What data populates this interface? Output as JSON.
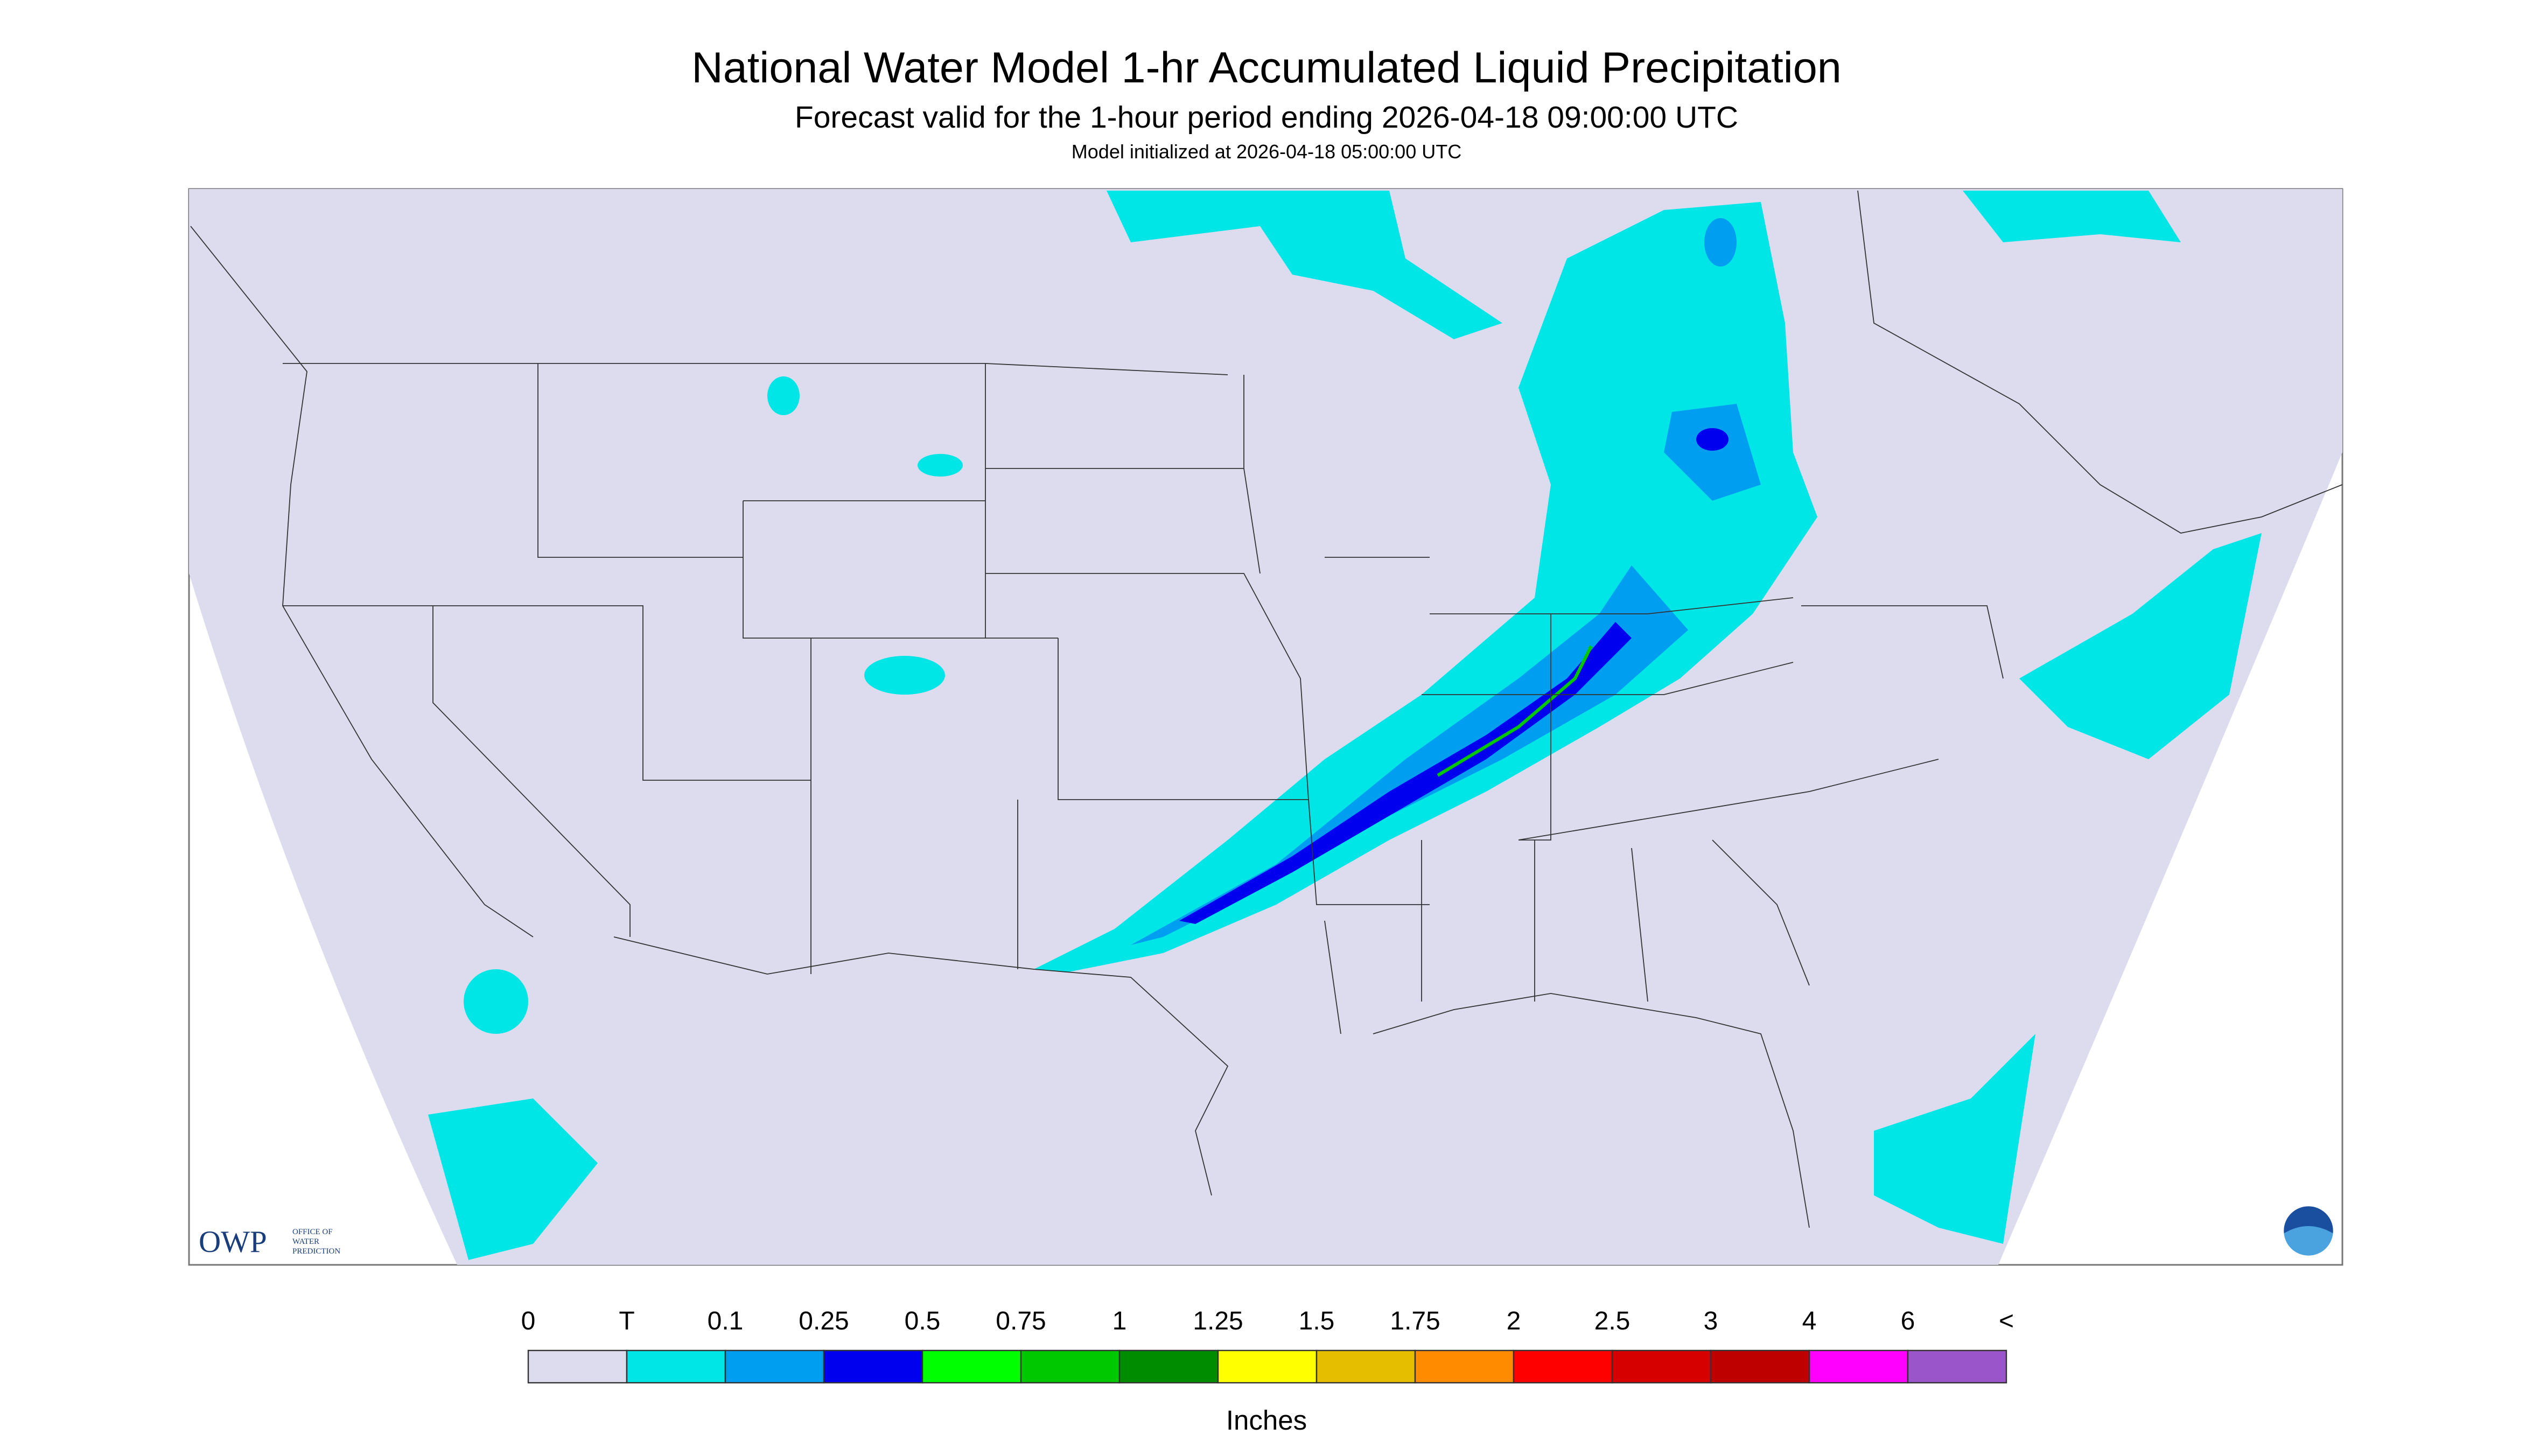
{
  "header": {
    "title": "National Water Model 1-hr Accumulated Liquid Precipitation",
    "subtitle": "Forecast valid for the 1-hour period ending 2026-04-18 09:00:00 UTC",
    "initialized": "Model initialized at 2026-04-18 05:00:00 UTC"
  },
  "logo": {
    "text": "OWP",
    "org": [
      "OFFICE OF",
      "WATER",
      "PREDICTION"
    ]
  },
  "legend": {
    "labels": [
      "0",
      "T",
      "0.1",
      "0.25",
      "0.5",
      "0.75",
      "1",
      "1.25",
      "1.5",
      "1.75",
      "2",
      "2.5",
      "3",
      "4",
      "6",
      "<"
    ],
    "colors": [
      "#dcdcee",
      "#00e5e5",
      "#009ef0",
      "#0000ee",
      "#00ff00",
      "#00c800",
      "#008c00",
      "#ffff00",
      "#e5be00",
      "#ff8c00",
      "#ff0000",
      "#d60000",
      "#bf0000",
      "#ff00ff",
      "#9955c9"
    ],
    "unit": "Inches"
  }
}
